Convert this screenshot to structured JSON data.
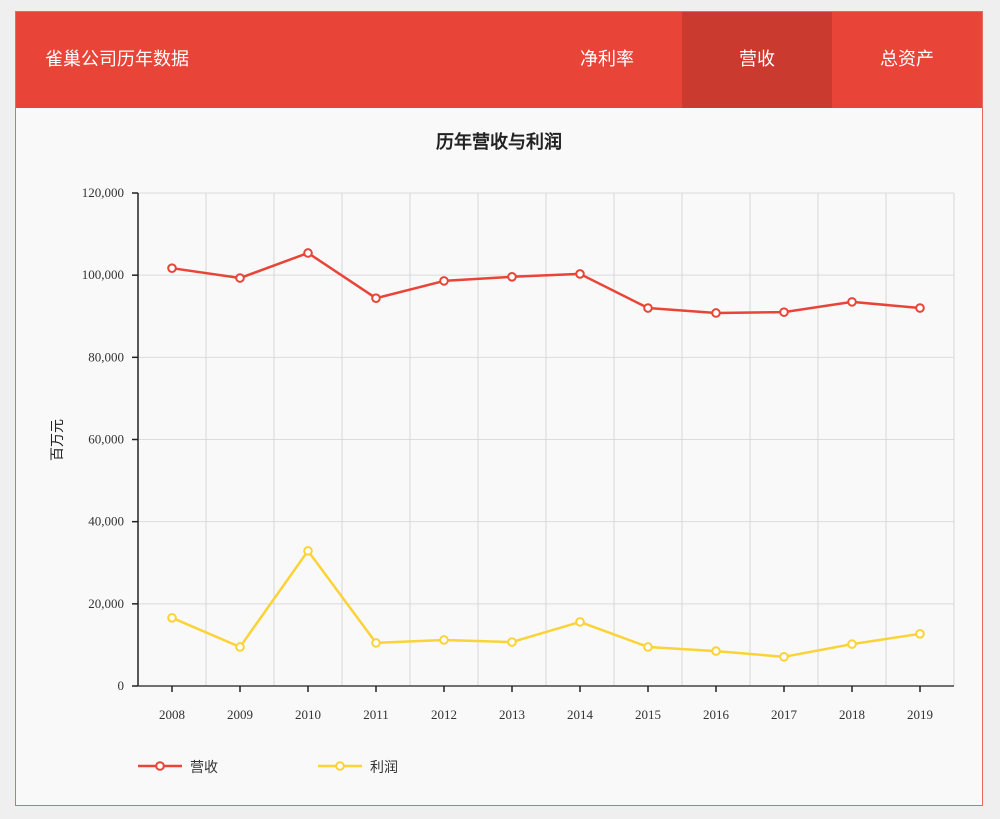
{
  "header": {
    "brand": "雀巢公司历年数据",
    "tabs": [
      {
        "label": "净利率",
        "active": false
      },
      {
        "label": "营收",
        "active": true
      },
      {
        "label": "总资产",
        "active": false
      }
    ],
    "colors": {
      "bar": "#e84437",
      "active_tab": "#cb3a2f"
    }
  },
  "chart_data": {
    "type": "line",
    "title": "历年营收与利润",
    "xlabel": "",
    "ylabel": "百万元",
    "ylim": [
      0,
      120000
    ],
    "yticks": [
      0,
      20000,
      40000,
      60000,
      80000,
      100000,
      120000
    ],
    "ytick_labels": [
      "0",
      "20,000",
      "40,000",
      "60,000",
      "80,000",
      "100,000",
      "120,000"
    ],
    "grid": true,
    "legend_position": "bottom-left",
    "categories": [
      "2008",
      "2009",
      "2010",
      "2011",
      "2012",
      "2013",
      "2014",
      "2015",
      "2016",
      "2017",
      "2018",
      "2019"
    ],
    "series": [
      {
        "name": "营收",
        "color": "#e84437",
        "values": [
          101700,
          99300,
          105400,
          94400,
          98600,
          99600,
          100300,
          92000,
          90800,
          91000,
          93500,
          92000
        ]
      },
      {
        "name": "利润",
        "color": "#fbd337",
        "values": [
          16600,
          9500,
          32900,
          10500,
          11200,
          10700,
          15600,
          9500,
          8500,
          7100,
          10200,
          12700
        ]
      }
    ]
  }
}
